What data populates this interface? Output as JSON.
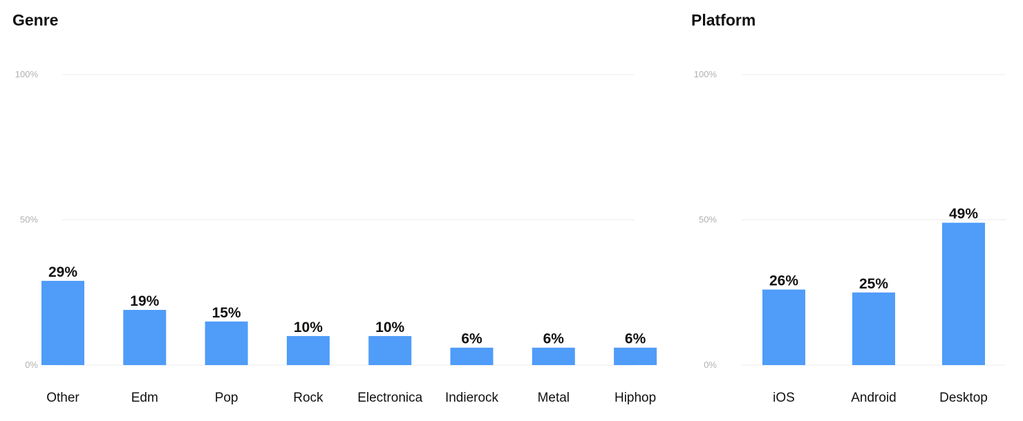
{
  "chart_data": [
    {
      "type": "bar",
      "title": "Genre",
      "categories": [
        "Other",
        "Edm",
        "Pop",
        "Rock",
        "Electronica",
        "Indierock",
        "Metal",
        "Hiphop"
      ],
      "values": [
        29,
        19,
        15,
        10,
        10,
        6,
        6,
        6
      ],
      "value_labels": [
        "29%",
        "19%",
        "15%",
        "10%",
        "10%",
        "6%",
        "6%",
        "6%"
      ],
      "ylim": [
        0,
        100
      ],
      "yticks": [
        "0%",
        "50%",
        "100%"
      ],
      "grid": true,
      "bar_color": "#4f9cf9"
    },
    {
      "type": "bar",
      "title": "Platform",
      "categories": [
        "iOS",
        "Android",
        "Desktop"
      ],
      "values": [
        26,
        25,
        49
      ],
      "value_labels": [
        "26%",
        "25%",
        "49%"
      ],
      "ylim": [
        0,
        100
      ],
      "yticks": [
        "0%",
        "50%",
        "100%"
      ],
      "grid": true,
      "bar_color": "#4f9cf9"
    }
  ]
}
